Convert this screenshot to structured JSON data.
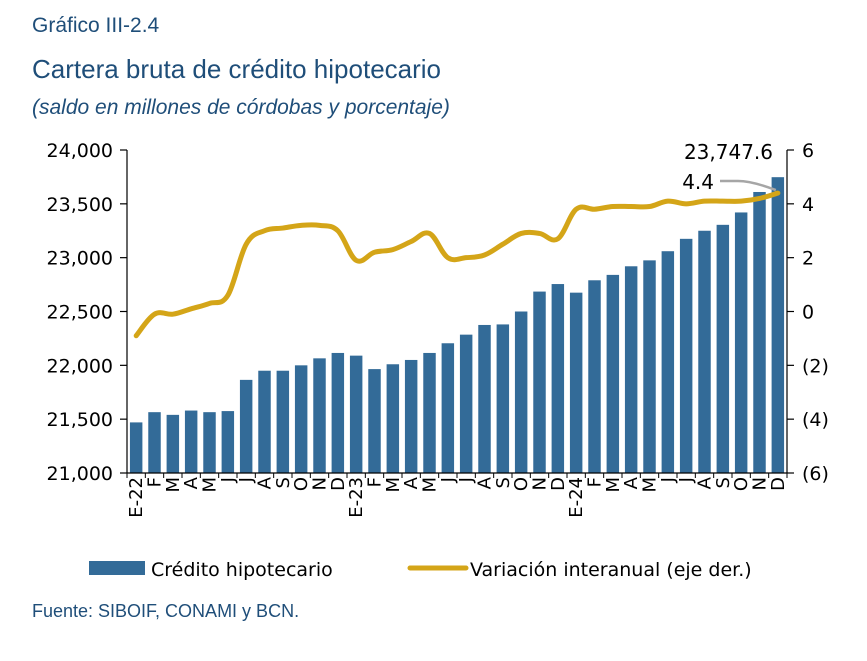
{
  "header": {
    "label": "Gráfico III-2.4",
    "title": "Cartera bruta de crédito hipotecario",
    "subtitle": "(saldo en millones de córdobas y porcentaje)"
  },
  "source": "Fuente: SIBOIF, CONAMI y BCN.",
  "colors": {
    "bars": "#336b98",
    "line": "#d4a518",
    "annotation_arrow": "#a6a6a6",
    "text": "#1f4e79"
  },
  "chart_data": {
    "type": "bar",
    "categories": [
      "E-22",
      "F",
      "M",
      "A",
      "M",
      "J",
      "J",
      "A",
      "S",
      "O",
      "N",
      "D",
      "E-23",
      "F",
      "M",
      "A",
      "M",
      "J",
      "J",
      "A",
      "S",
      "O",
      "N",
      "D",
      "E-24",
      "F",
      "M",
      "A",
      "M",
      "J",
      "J",
      "A",
      "S",
      "O",
      "N",
      "D"
    ],
    "series": [
      {
        "name": "Crédito hipotecario",
        "type": "bar",
        "axis": "left",
        "values": [
          21470,
          21565,
          21540,
          21580,
          21565,
          21575,
          21865,
          21950,
          21950,
          22000,
          22065,
          22115,
          22090,
          21965,
          22010,
          22050,
          22115,
          22205,
          22285,
          22375,
          22380,
          22500,
          22685,
          22755,
          22675,
          22790,
          22840,
          22920,
          22975,
          23060,
          23175,
          23250,
          23305,
          23420,
          23610,
          23747.6
        ]
      },
      {
        "name": "Variación interanual (eje der.)",
        "type": "line",
        "axis": "right",
        "values": [
          -0.9,
          -0.1,
          -0.1,
          0.1,
          0.3,
          0.6,
          2.5,
          3.0,
          3.1,
          3.2,
          3.2,
          3.0,
          1.9,
          2.2,
          2.3,
          2.6,
          2.9,
          2.0,
          2.0,
          2.1,
          2.5,
          2.9,
          2.9,
          2.7,
          3.8,
          3.8,
          3.9,
          3.9,
          3.9,
          4.1,
          4.0,
          4.1,
          4.1,
          4.1,
          4.2,
          4.4
        ]
      }
    ],
    "y_left": {
      "min": 21000,
      "max": 24000,
      "ticks": [
        "21,000",
        "21,500",
        "22,000",
        "22,500",
        "23,000",
        "23,500",
        "24,000"
      ]
    },
    "y_right": {
      "min": -6,
      "max": 6,
      "ticks": [
        "(6)",
        "(4)",
        "(2)",
        "0",
        "2",
        "4",
        "6"
      ]
    },
    "annotations": {
      "last_bar_label": "23,747.6",
      "last_line_label": "4.4"
    },
    "legend": {
      "placement": "bottom",
      "bar_label": "Crédito hipotecario",
      "line_label": "Variación interanual (eje der.)"
    },
    "grid": false
  }
}
